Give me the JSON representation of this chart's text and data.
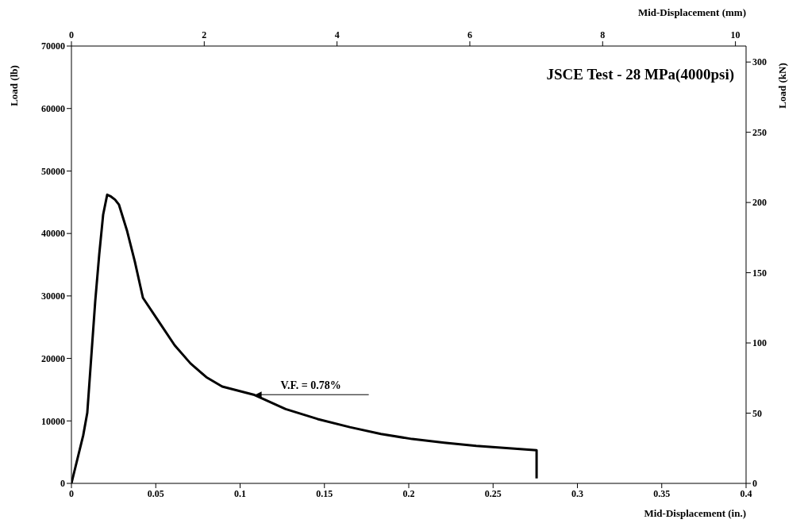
{
  "chart_data": {
    "type": "line",
    "title": "JSCE Test - 28 MPa(4000psi)",
    "xlabel": "Mid-Displacement (in.)",
    "x2label": "Mid-Displacement (mm)",
    "ylabel": "Load (lb)",
    "y2label": "Load (kN)",
    "xlim": [
      0,
      0.4
    ],
    "xticks": [
      0,
      0.05,
      0.1,
      0.15,
      0.2,
      0.25,
      0.3,
      0.35,
      0.4
    ],
    "x2lim": [
      0,
      10.16
    ],
    "x2ticks": [
      0,
      2,
      4,
      6,
      8,
      10
    ],
    "ylim": [
      0,
      70000
    ],
    "yticks": [
      0,
      10000,
      20000,
      30000,
      40000,
      50000,
      60000,
      70000
    ],
    "y2lim": [
      0,
      311.4
    ],
    "y2ticks": [
      0,
      50,
      100,
      150,
      200,
      250,
      300
    ],
    "marker": "none",
    "line_style": "solid",
    "series": [
      {
        "color": "#000000",
        "x": [
          0,
          0.007,
          0.0094,
          0.0141,
          0.0165,
          0.0188,
          0.0212,
          0.0235,
          0.0259,
          0.0282,
          0.0329,
          0.0376,
          0.0424,
          0.0518,
          0.0612,
          0.0706,
          0.08,
          0.0894,
          0.108,
          0.127,
          0.146,
          0.165,
          0.1835,
          0.202,
          0.221,
          0.24,
          0.2758,
          0.2758
        ],
        "values": [
          0,
          7700,
          11300,
          29100,
          36700,
          43000,
          46200,
          45900,
          45400,
          44600,
          40500,
          35500,
          29700,
          25900,
          22100,
          19200,
          17000,
          15500,
          14200,
          11900,
          10300,
          9000,
          7900,
          7100,
          6500,
          6000,
          5300,
          800
        ]
      }
    ],
    "annotations": [
      {
        "text": "V.F. = 0.78%",
        "x": 0.109,
        "y": 14200
      }
    ]
  }
}
